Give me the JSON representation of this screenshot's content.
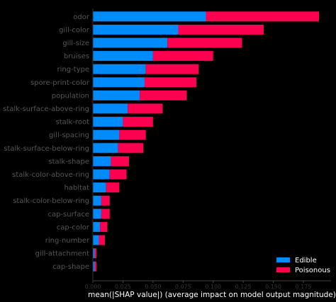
{
  "chart_data": {
    "type": "bar",
    "stacked": true,
    "orientation": "horizontal",
    "categories": [
      "odor",
      "gill-color",
      "gill-size",
      "bruises",
      "ring-type",
      "spore-print-color",
      "population",
      "stalk-surface-above-ring",
      "stalk-root",
      "gill-spacing",
      "stalk-surface-below-ring",
      "stalk-shape",
      "stalk-color-above-ring",
      "habitat",
      "stalk-color-below-ring",
      "cap-surface",
      "cap-color",
      "ring-number",
      "gill-attachment",
      "cap-shape"
    ],
    "series": [
      {
        "name": "Edible",
        "color": "#008bfb",
        "values": [
          0.094,
          0.071,
          0.062,
          0.05,
          0.044,
          0.043,
          0.039,
          0.029,
          0.025,
          0.022,
          0.021,
          0.015,
          0.014,
          0.011,
          0.007,
          0.007,
          0.006,
          0.005,
          0.0015,
          0.0015
        ]
      },
      {
        "name": "Poisonous",
        "color": "#ff0051",
        "values": [
          0.094,
          0.071,
          0.062,
          0.05,
          0.044,
          0.043,
          0.039,
          0.029,
          0.025,
          0.022,
          0.021,
          0.015,
          0.014,
          0.011,
          0.007,
          0.007,
          0.006,
          0.005,
          0.0015,
          0.0015
        ]
      }
    ],
    "xlabel": "mean(|SHAP value|) (average impact on model output magnitude)",
    "xlim": [
      0,
      0.198
    ],
    "xticks": [
      "0.000",
      "0.025",
      "0.050",
      "0.075",
      "0.100",
      "0.125",
      "0.150",
      "0.175"
    ],
    "legend": {
      "position": "bottom-right",
      "entries": [
        "Edible",
        "Poisonous"
      ]
    },
    "grid": false
  }
}
